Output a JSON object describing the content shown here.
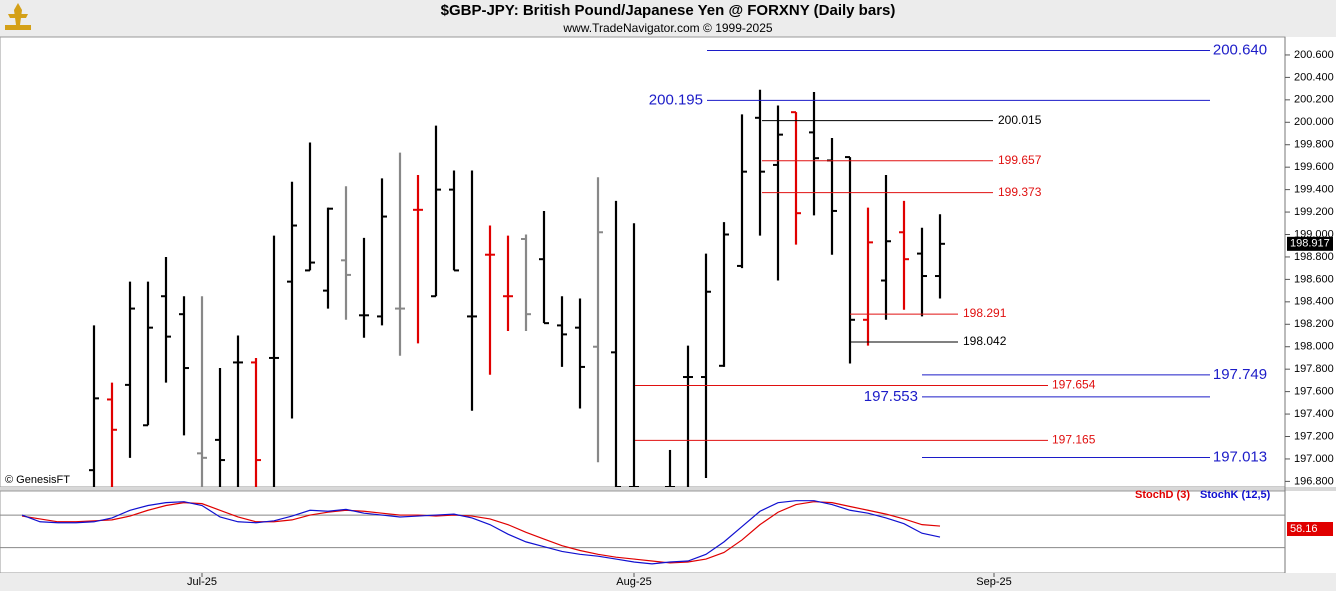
{
  "chart_data": {
    "type": "ohlc",
    "title": "$GBP-JPY:  British Pound/Japanese Yen @ FORXNY  (Daily bars)",
    "subtitle": "www.TradeNavigator.com © 1999-2025",
    "copyright": "© GenesisFT",
    "categories": [
      null,
      null,
      null,
      null,
      null,
      null,
      null,
      null,
      null,
      null,
      "Jul-25",
      null,
      null,
      null,
      null,
      null,
      null,
      null,
      null,
      null,
      null,
      null,
      null,
      null,
      null,
      null,
      null,
      null,
      null,
      null,
      null,
      null,
      null,
      null,
      "Aug-25",
      null,
      null,
      null,
      null,
      null,
      null,
      null,
      null,
      null,
      null,
      null,
      null,
      null,
      null,
      null,
      null,
      null,
      null,
      null,
      "Sep-25"
    ],
    "open": [
      null,
      null,
      null,
      null,
      196.9,
      197.53,
      197.66,
      197.3,
      198.45,
      198.29,
      197.05,
      197.17,
      197.86,
      197.86,
      197.9,
      198.58,
      198.68,
      198.5,
      198.77,
      198.28,
      198.27,
      198.34,
      199.22,
      198.45,
      199.4,
      198.27,
      198.82,
      198.45,
      198.96,
      198.78,
      198.19,
      198.17,
      198.0,
      197.95,
      196.75,
      null,
      196.75,
      197.73,
      197.73,
      197.83,
      198.72,
      200.04,
      199.62,
      200.09,
      199.91,
      199.66,
      199.69,
      198.24,
      198.59,
      199.02,
      198.83,
      198.63,
      null,
      null,
      null
    ],
    "high": [
      null,
      null,
      null,
      null,
      198.19,
      197.68,
      198.58,
      198.58,
      198.8,
      198.45,
      198.45,
      197.81,
      198.1,
      197.9,
      198.99,
      199.47,
      199.82,
      199.24,
      199.43,
      198.97,
      199.5,
      199.73,
      199.53,
      199.97,
      199.57,
      199.57,
      199.08,
      198.99,
      199.0,
      199.21,
      198.45,
      198.43,
      199.51,
      199.3,
      199.1,
      null,
      197.08,
      198.01,
      198.83,
      199.11,
      200.07,
      200.29,
      200.15,
      200.09,
      200.27,
      199.86,
      199.69,
      199.24,
      199.53,
      199.3,
      199.06,
      199.18,
      null,
      null,
      null
    ],
    "low": [
      null,
      null,
      null,
      null,
      196.75,
      196.75,
      197.01,
      197.3,
      197.68,
      197.21,
      196.75,
      196.75,
      196.75,
      196.75,
      196.75,
      197.36,
      198.68,
      198.34,
      198.24,
      198.08,
      198.19,
      197.92,
      198.03,
      198.45,
      198.68,
      197.43,
      197.75,
      198.14,
      198.14,
      198.21,
      197.82,
      197.45,
      196.97,
      196.75,
      196.75,
      null,
      196.75,
      196.75,
      196.83,
      197.82,
      198.7,
      198.99,
      198.59,
      198.91,
      199.17,
      198.82,
      197.85,
      198.01,
      198.24,
      198.33,
      198.27,
      198.43,
      null,
      null,
      null
    ],
    "close": [
      null,
      null,
      null,
      null,
      197.54,
      197.26,
      198.34,
      198.17,
      198.09,
      197.81,
      197.01,
      196.99,
      197.86,
      196.99,
      197.9,
      199.08,
      198.75,
      199.23,
      198.64,
      198.28,
      199.16,
      198.34,
      199.22,
      199.4,
      198.68,
      198.27,
      198.82,
      198.45,
      198.29,
      198.21,
      198.11,
      197.82,
      199.02,
      196.75,
      196.75,
      null,
      196.75,
      197.73,
      198.49,
      199.0,
      199.56,
      199.56,
      199.89,
      199.19,
      199.68,
      199.21,
      198.24,
      198.93,
      198.94,
      198.78,
      198.63,
      198.917,
      null,
      null,
      null
    ],
    "bar_colors": [
      null,
      null,
      null,
      null,
      "#000000",
      "#e00000",
      "#000000",
      "#000000",
      "#000000",
      "#000000",
      "#888888",
      "#000000",
      "#000000",
      "#e00000",
      "#000000",
      "#000000",
      "#000000",
      "#000000",
      "#888888",
      "#000000",
      "#000000",
      "#888888",
      "#e00000",
      "#000000",
      "#000000",
      "#000000",
      "#e00000",
      "#e00000",
      "#888888",
      "#000000",
      "#000000",
      "#000000",
      "#888888",
      "#000000",
      "#000000",
      null,
      "#000000",
      "#000000",
      "#000000",
      "#000000",
      "#000000",
      "#000000",
      "#000000",
      "#e00000",
      "#000000",
      "#000000",
      "#000000",
      "#e00000",
      "#000000",
      "#e00000",
      "#000000",
      "#000000",
      null,
      null,
      null
    ],
    "ylim": [
      196.75,
      200.76
    ],
    "yticks": [
      {
        "value": 196.8,
        "label": "196.800"
      },
      {
        "value": 197.0,
        "label": "197.000"
      },
      {
        "value": 197.2,
        "label": "197.200"
      },
      {
        "value": 197.4,
        "label": "197.400"
      },
      {
        "value": 197.6,
        "label": "197.600"
      },
      {
        "value": 197.8,
        "label": "197.800"
      },
      {
        "value": 198.0,
        "label": "198.000"
      },
      {
        "value": 198.2,
        "label": "198.200"
      },
      {
        "value": 198.4,
        "label": "198.400"
      },
      {
        "value": 198.6,
        "label": "198.600"
      },
      {
        "value": 198.8,
        "label": "198.800"
      },
      {
        "value": 199.0,
        "label": "199.000"
      },
      {
        "value": 199.2,
        "label": "199.200"
      },
      {
        "value": 199.4,
        "label": "199.400"
      },
      {
        "value": 199.6,
        "label": "199.600"
      },
      {
        "value": 199.8,
        "label": "199.800"
      },
      {
        "value": 200.0,
        "label": "200.000"
      },
      {
        "value": 200.2,
        "label": "200.200"
      },
      {
        "value": 200.4,
        "label": "200.400"
      },
      {
        "value": 200.6,
        "label": "200.600"
      }
    ],
    "levels": [
      {
        "value": 200.64,
        "label": "200.640",
        "color": "#1c1cc8"
      },
      {
        "value": 200.195,
        "label": "200.195",
        "color": "#1c1cc8"
      },
      {
        "value": 200.015,
        "label": "200.015",
        "color": "#000000"
      },
      {
        "value": 199.657,
        "label": "199.657",
        "color": "#e01010"
      },
      {
        "value": 199.373,
        "label": "199.373",
        "color": "#e01010"
      },
      {
        "value": 198.291,
        "label": "198.291",
        "color": "#e01010"
      },
      {
        "value": 198.042,
        "label": "198.042",
        "color": "#000000"
      },
      {
        "value": 197.749,
        "label": "197.749",
        "color": "#1c1cc8"
      },
      {
        "value": 197.654,
        "label": "197.654",
        "color": "#e01010"
      },
      {
        "value": 197.553,
        "label": "197.553",
        "color": "#1c1cc8"
      },
      {
        "value": 197.165,
        "label": "197.165",
        "color": "#e01010"
      },
      {
        "value": 197.013,
        "label": "197.013",
        "color": "#1c1cc8"
      }
    ],
    "stoch": {
      "ylim": [
        -14,
        112
      ],
      "reference_lines": [
        75,
        25
      ],
      "series": [
        {
          "name": "StochD (3)",
          "color": "#e00000",
          "values": [
            73.5,
            69.1,
            64.7,
            64.7,
            66.2,
            67.6,
            73.5,
            82.4,
            89.7,
            94.1,
            92.6,
            82.4,
            72.1,
            64.7,
            64.7,
            67.6,
            75,
            79.4,
            82.4,
            80.9,
            77.9,
            75,
            75,
            73.5,
            75,
            73.5,
            69.1,
            60.3,
            48.5,
            38.2,
            27.9,
            20.6,
            14.7,
            10.3,
            7.4,
            4.4,
            1.5,
            2.9,
            7.4,
            17.6,
            36.8,
            60.3,
            79.4,
            91.2,
            95.6,
            94.1,
            88.2,
            82.4,
            76.5,
            69.1,
            60.3,
            58.16,
            null,
            null,
            null
          ]
        },
        {
          "name": "StochK (12,5)",
          "color": "#1010d0",
          "values": [
            75,
            64.7,
            63.2,
            63.2,
            64.7,
            70.6,
            82.4,
            89.7,
            94.1,
            95.6,
            89.7,
            72.1,
            64.7,
            63.2,
            66.2,
            73.5,
            82.4,
            80.9,
            83.8,
            77.9,
            75,
            72.1,
            73.5,
            75,
            76.5,
            70.6,
            60.3,
            45.6,
            33.8,
            26.5,
            19.1,
            14.7,
            11.8,
            7.4,
            2.9,
            0,
            2.9,
            4.4,
            14.7,
            33.8,
            57.4,
            80.9,
            94.1,
            97.1,
            97.1,
            91.2,
            82.4,
            77.9,
            70.6,
            61.8,
            47.1,
            41.2,
            null,
            null,
            null
          ]
        }
      ]
    }
  }
}
